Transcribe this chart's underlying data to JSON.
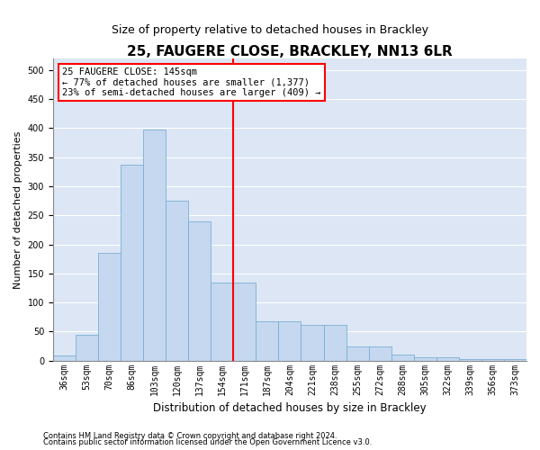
{
  "title": "25, FAUGERE CLOSE, BRACKLEY, NN13 6LR",
  "subtitle": "Size of property relative to detached houses in Brackley",
  "xlabel": "Distribution of detached houses by size in Brackley",
  "ylabel": "Number of detached properties",
  "categories": [
    "36sqm",
    "53sqm",
    "70sqm",
    "86sqm",
    "103sqm",
    "120sqm",
    "137sqm",
    "154sqm",
    "171sqm",
    "187sqm",
    "204sqm",
    "221sqm",
    "238sqm",
    "255sqm",
    "272sqm",
    "288sqm",
    "305sqm",
    "322sqm",
    "339sqm",
    "356sqm",
    "373sqm"
  ],
  "values": [
    8,
    45,
    185,
    337,
    397,
    275,
    240,
    135,
    135,
    68,
    68,
    62,
    62,
    25,
    25,
    10,
    5,
    5,
    2,
    2,
    2
  ],
  "bar_color": "#c5d8ef",
  "bar_edge_color": "#7aafd4",
  "vline_index": 7.5,
  "vline_color": "red",
  "annotation_text": "25 FAUGERE CLOSE: 145sqm\n← 77% of detached houses are smaller (1,377)\n23% of semi-detached houses are larger (409) →",
  "annotation_box_color": "white",
  "annotation_box_edge_color": "red",
  "ylim": [
    0,
    520
  ],
  "yticks": [
    0,
    50,
    100,
    150,
    200,
    250,
    300,
    350,
    400,
    450,
    500
  ],
  "background_color": "#dce6f5",
  "grid_color": "white",
  "footer_line1": "Contains HM Land Registry data © Crown copyright and database right 2024.",
  "footer_line2": "Contains public sector information licensed under the Open Government Licence v3.0.",
  "title_fontsize": 11,
  "subtitle_fontsize": 9,
  "ylabel_fontsize": 8,
  "xlabel_fontsize": 8.5,
  "tick_fontsize": 7,
  "annotation_fontsize": 7.5,
  "footer_fontsize": 6
}
